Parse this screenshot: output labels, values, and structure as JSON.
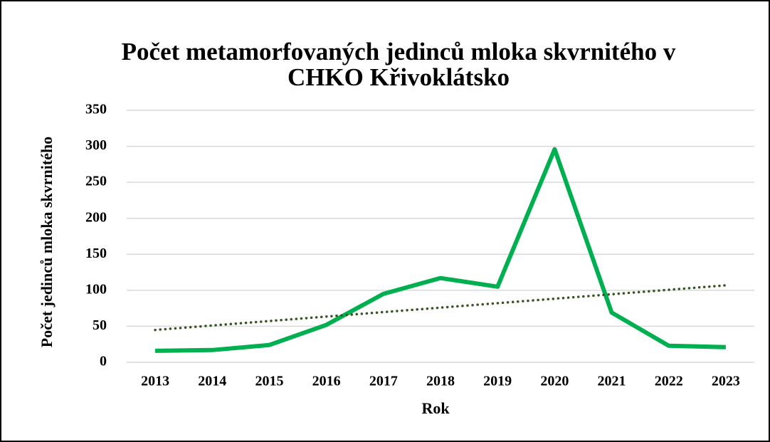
{
  "chart_data": {
    "type": "line",
    "title": [
      "Počet metamorfovaných jedinců mloka skvrnitého v",
      "CHKO Křivoklátsko"
    ],
    "x_label": "Rok",
    "y_label": "Počet jedinců mloka skvrnitého",
    "categories": [
      "2013",
      "2014",
      "2015",
      "2016",
      "2017",
      "2018",
      "2019",
      "2020",
      "2021",
      "2022",
      "2023"
    ],
    "series": [
      {
        "color": "#00b050",
        "values": [
          16,
          17,
          24,
          52,
          95,
          117,
          105,
          296,
          69,
          23,
          21
        ]
      }
    ],
    "trendline": {
      "kind": "linear",
      "color": "#375623",
      "style": "dotted"
    },
    "ylim": [
      0,
      350
    ],
    "yticks": [
      0,
      50,
      100,
      150,
      200,
      250,
      300,
      350
    ],
    "grid": true
  }
}
